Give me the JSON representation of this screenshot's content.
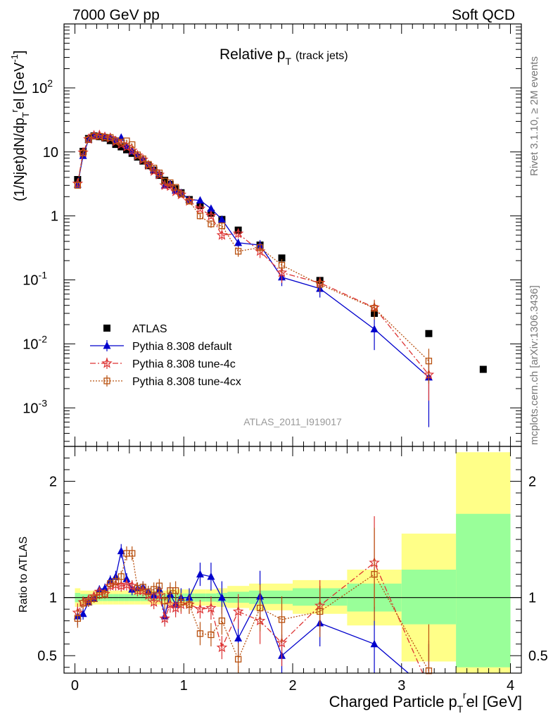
{
  "header": {
    "energy": "7000 GeV pp",
    "category": "Soft QCD",
    "side_top": "Rivet 3.1.10, ≥ 2M events",
    "side_bottom": "mcplots.cern.ch [arXiv:1306.3436]",
    "analysis_id": "ATLAS_2011_I919017"
  },
  "chart_data": {
    "type": "scatter",
    "title_main": "Relative p",
    "title_sub": "T",
    "title_suffix": "(track jets)",
    "xlabel": "Charged Particle p",
    "xlabel_sub": "T",
    "xlabel_sup": "r",
    "xlabel_suffix": "el [GeV]",
    "ylabel": "(1/Njet)dN/dp",
    "ylabel_sub": "T",
    "ylabel_sup": "r",
    "ylabel_suffix": "el [GeV",
    "ylabel_exp": "-1",
    "ylabel_close": "]",
    "ratio_ylabel": "Ratio to ATLAS",
    "xlim": [
      -0.1,
      4.1
    ],
    "ylim_main": [
      0.00025,
      1000
    ],
    "ylim_ratio": [
      0.35,
      2.3
    ],
    "log_y_main": true,
    "main_y_ticks": [
      {
        "v": 0.001,
        "base": "10",
        "exp": "-3"
      },
      {
        "v": 0.01,
        "base": "10",
        "exp": "-2"
      },
      {
        "v": 0.1,
        "base": "10",
        "exp": "-1"
      },
      {
        "v": 1,
        "base": "1",
        "exp": ""
      },
      {
        "v": 10,
        "base": "10",
        "exp": ""
      },
      {
        "v": 100,
        "base": "10",
        "exp": "2"
      }
    ],
    "x_ticks": [
      {
        "v": 0,
        "label": "0"
      },
      {
        "v": 1,
        "label": "1"
      },
      {
        "v": 2,
        "label": "2"
      },
      {
        "v": 3,
        "label": "3"
      },
      {
        "v": 4,
        "label": "4"
      }
    ],
    "ratio_y_ticks": [
      {
        "v": 0.5,
        "label": "0.5"
      },
      {
        "v": 1,
        "label": "1"
      },
      {
        "v": 2,
        "label": "2"
      }
    ],
    "legend_position": "lower-left",
    "series": [
      {
        "name": "ATLAS",
        "color": "#000000",
        "marker": "filled-square",
        "x": [
          0.025,
          0.075,
          0.125,
          0.175,
          0.225,
          0.275,
          0.325,
          0.375,
          0.425,
          0.475,
          0.525,
          0.575,
          0.625,
          0.675,
          0.725,
          0.775,
          0.825,
          0.875,
          0.925,
          0.975,
          1.05,
          1.15,
          1.25,
          1.35,
          1.5,
          1.7,
          1.9,
          2.25,
          2.75,
          3.25,
          3.75
        ],
        "y": [
          3.7,
          10.2,
          16.2,
          17.8,
          17.3,
          16.5,
          15.0,
          13.1,
          12.0,
          10.8,
          9.5,
          8.3,
          7.2,
          6.1,
          5.2,
          4.3,
          3.6,
          3.1,
          2.65,
          2.3,
          1.8,
          1.45,
          1.1,
          0.88,
          0.6,
          0.35,
          0.22,
          0.098,
          0.03,
          0.0145,
          0.004
        ]
      },
      {
        "name": "Pythia 8.308 default",
        "color": "#0000cc",
        "marker": "filled-triangle",
        "line": "solid",
        "x": [
          0.025,
          0.075,
          0.125,
          0.175,
          0.225,
          0.275,
          0.325,
          0.375,
          0.425,
          0.475,
          0.525,
          0.575,
          0.625,
          0.675,
          0.725,
          0.775,
          0.825,
          0.875,
          0.925,
          0.975,
          1.05,
          1.15,
          1.25,
          1.35,
          1.5,
          1.7,
          1.9,
          2.25,
          2.75,
          3.25
        ],
        "y": [
          3.1,
          8.7,
          15.5,
          17.5,
          18.5,
          17.8,
          17.2,
          15.4,
          16.8,
          12.5,
          10.2,
          9.0,
          7.8,
          6.4,
          5.3,
          4.6,
          3.0,
          3.2,
          2.5,
          2.3,
          1.8,
          1.75,
          1.3,
          0.88,
          0.38,
          0.35,
          0.11,
          0.073,
          0.017,
          0.003
        ],
        "yerr": [
          0.2,
          0.4,
          0.6,
          0.6,
          0.6,
          0.6,
          0.6,
          0.5,
          0.6,
          0.5,
          0.4,
          0.4,
          0.35,
          0.3,
          0.28,
          0.25,
          0.2,
          0.2,
          0.18,
          0.16,
          0.14,
          0.15,
          0.12,
          0.1,
          0.06,
          0.07,
          0.03,
          0.02,
          0.009,
          0.0025
        ],
        "ratio": [
          0.84,
          0.86,
          0.96,
          0.99,
          1.07,
          1.08,
          1.15,
          1.18,
          1.4,
          1.16,
          1.07,
          1.08,
          1.09,
          1.05,
          1.02,
          1.07,
          0.84,
          1.03,
          0.94,
          1.0,
          1.0,
          1.2,
          1.18,
          1.0,
          0.65,
          1.01,
          0.5,
          0.78,
          0.6,
          0.2
        ],
        "ratio_err": [
          0.08,
          0.05,
          0.04,
          0.035,
          0.035,
          0.04,
          0.04,
          0.05,
          0.06,
          0.05,
          0.05,
          0.05,
          0.05,
          0.05,
          0.06,
          0.06,
          0.07,
          0.07,
          0.08,
          0.08,
          0.08,
          0.1,
          0.12,
          0.14,
          0.16,
          0.22,
          0.18,
          0.2,
          0.32,
          0.4
        ]
      },
      {
        "name": "Pythia 8.308 tune-4c",
        "color": "#dd3333",
        "marker": "open-star",
        "line": "dashdot",
        "x": [
          0.025,
          0.075,
          0.125,
          0.175,
          0.225,
          0.275,
          0.325,
          0.375,
          0.425,
          0.475,
          0.525,
          0.575,
          0.625,
          0.675,
          0.725,
          0.775,
          0.825,
          0.875,
          0.925,
          0.975,
          1.05,
          1.15,
          1.25,
          1.35,
          1.5,
          1.7,
          1.9,
          2.25,
          2.75,
          3.25
        ],
        "y": [
          3.2,
          9.8,
          15.8,
          18.0,
          18.2,
          17.0,
          16.5,
          14.5,
          13.2,
          12.0,
          10.5,
          8.8,
          7.6,
          6.2,
          5.0,
          4.4,
          3.0,
          2.9,
          2.4,
          2.15,
          1.7,
          1.3,
          1.0,
          0.5,
          0.53,
          0.28,
          0.13,
          0.09,
          0.037,
          0.0033
        ],
        "yerr": [
          0.2,
          0.4,
          0.6,
          0.6,
          0.6,
          0.6,
          0.6,
          0.5,
          0.5,
          0.5,
          0.4,
          0.4,
          0.35,
          0.3,
          0.28,
          0.25,
          0.2,
          0.2,
          0.18,
          0.16,
          0.14,
          0.12,
          0.1,
          0.08,
          0.08,
          0.06,
          0.04,
          0.02,
          0.012,
          0.002
        ],
        "ratio": [
          0.87,
          0.96,
          0.98,
          1.01,
          1.05,
          1.03,
          1.1,
          1.11,
          1.1,
          1.11,
          1.1,
          1.06,
          1.06,
          1.02,
          0.96,
          1.02,
          0.82,
          0.94,
          0.91,
          0.94,
          0.94,
          0.9,
          0.91,
          0.57,
          0.88,
          0.8,
          0.61,
          0.93,
          1.3,
          0.23
        ],
        "ratio_err": [
          0.08,
          0.05,
          0.04,
          0.035,
          0.035,
          0.04,
          0.04,
          0.05,
          0.05,
          0.05,
          0.05,
          0.05,
          0.05,
          0.05,
          0.06,
          0.06,
          0.07,
          0.07,
          0.08,
          0.08,
          0.08,
          0.08,
          0.1,
          0.1,
          0.15,
          0.2,
          0.2,
          0.22,
          0.4,
          0.4
        ]
      },
      {
        "name": "Pythia 8.308 tune-4cx",
        "color": "#b8500f",
        "marker": "open-square",
        "line": "dotted",
        "x": [
          0.025,
          0.075,
          0.125,
          0.175,
          0.225,
          0.275,
          0.325,
          0.375,
          0.425,
          0.475,
          0.525,
          0.575,
          0.625,
          0.675,
          0.725,
          0.775,
          0.825,
          0.875,
          0.925,
          0.975,
          1.05,
          1.15,
          1.25,
          1.35,
          1.5,
          1.7,
          1.9,
          2.25,
          2.75,
          3.25
        ],
        "y": [
          3.0,
          9.6,
          15.6,
          17.6,
          17.6,
          17.0,
          16.8,
          15.0,
          14.2,
          14.9,
          13.0,
          9.0,
          7.8,
          6.4,
          5.6,
          4.7,
          3.5,
          3.3,
          2.8,
          2.2,
          1.7,
          1.0,
          0.75,
          0.7,
          0.28,
          0.32,
          0.17,
          0.085,
          0.036,
          0.0054
        ],
        "yerr": [
          0.2,
          0.4,
          0.6,
          0.6,
          0.6,
          0.6,
          0.6,
          0.5,
          0.5,
          0.6,
          0.5,
          0.4,
          0.35,
          0.3,
          0.28,
          0.25,
          0.2,
          0.2,
          0.18,
          0.16,
          0.14,
          0.12,
          0.1,
          0.09,
          0.05,
          0.06,
          0.04,
          0.02,
          0.012,
          0.003
        ],
        "ratio": [
          0.82,
          0.95,
          0.96,
          0.99,
          1.02,
          1.03,
          1.12,
          1.14,
          1.18,
          1.38,
          1.38,
          1.08,
          1.09,
          1.05,
          1.07,
          1.1,
          0.97,
          1.06,
          1.06,
          0.96,
          0.94,
          0.69,
          0.68,
          0.8,
          0.47,
          0.91,
          0.81,
          0.88,
          1.2,
          0.37
        ],
        "ratio_err": [
          0.08,
          0.05,
          0.04,
          0.035,
          0.035,
          0.04,
          0.04,
          0.05,
          0.05,
          0.06,
          0.06,
          0.05,
          0.05,
          0.05,
          0.06,
          0.06,
          0.07,
          0.07,
          0.08,
          0.08,
          0.08,
          0.1,
          0.1,
          0.12,
          0.14,
          0.2,
          0.2,
          0.22,
          0.4,
          0.4
        ]
      }
    ],
    "ratio_bands": [
      {
        "x0": 0.0,
        "x1": 0.05,
        "yellow": [
          0.92,
          1.08
        ],
        "green": [
          0.96,
          1.04
        ]
      },
      {
        "x0": 0.05,
        "x1": 0.1,
        "yellow": [
          0.94,
          1.06
        ],
        "green": [
          0.97,
          1.03
        ]
      },
      {
        "x0": 0.1,
        "x1": 0.15,
        "yellow": [
          0.94,
          1.06
        ],
        "green": [
          0.97,
          1.03
        ]
      },
      {
        "x0": 0.15,
        "x1": 0.2,
        "yellow": [
          0.94,
          1.06
        ],
        "green": [
          0.97,
          1.03
        ]
      },
      {
        "x0": 0.2,
        "x1": 0.25,
        "yellow": [
          0.94,
          1.06
        ],
        "green": [
          0.97,
          1.03
        ]
      },
      {
        "x0": 0.25,
        "x1": 0.3,
        "yellow": [
          0.94,
          1.06
        ],
        "green": [
          0.97,
          1.03
        ]
      },
      {
        "x0": 0.3,
        "x1": 0.35,
        "yellow": [
          0.94,
          1.06
        ],
        "green": [
          0.97,
          1.03
        ]
      },
      {
        "x0": 0.35,
        "x1": 0.4,
        "yellow": [
          0.94,
          1.06
        ],
        "green": [
          0.97,
          1.03
        ]
      },
      {
        "x0": 0.4,
        "x1": 0.45,
        "yellow": [
          0.94,
          1.06
        ],
        "green": [
          0.97,
          1.03
        ]
      },
      {
        "x0": 0.45,
        "x1": 0.5,
        "yellow": [
          0.94,
          1.06
        ],
        "green": [
          0.97,
          1.03
        ]
      },
      {
        "x0": 0.5,
        "x1": 0.55,
        "yellow": [
          0.94,
          1.06
        ],
        "green": [
          0.97,
          1.03
        ]
      },
      {
        "x0": 0.55,
        "x1": 0.6,
        "yellow": [
          0.94,
          1.06
        ],
        "green": [
          0.97,
          1.03
        ]
      },
      {
        "x0": 0.6,
        "x1": 0.65,
        "yellow": [
          0.94,
          1.06
        ],
        "green": [
          0.97,
          1.03
        ]
      },
      {
        "x0": 0.65,
        "x1": 0.7,
        "yellow": [
          0.94,
          1.06
        ],
        "green": [
          0.97,
          1.03
        ]
      },
      {
        "x0": 0.7,
        "x1": 0.75,
        "yellow": [
          0.94,
          1.06
        ],
        "green": [
          0.97,
          1.03
        ]
      },
      {
        "x0": 0.75,
        "x1": 0.8,
        "yellow": [
          0.94,
          1.06
        ],
        "green": [
          0.97,
          1.03
        ]
      },
      {
        "x0": 0.8,
        "x1": 0.85,
        "yellow": [
          0.94,
          1.06
        ],
        "green": [
          0.97,
          1.03
        ]
      },
      {
        "x0": 0.85,
        "x1": 0.9,
        "yellow": [
          0.93,
          1.07
        ],
        "green": [
          0.965,
          1.035
        ]
      },
      {
        "x0": 0.9,
        "x1": 0.95,
        "yellow": [
          0.93,
          1.07
        ],
        "green": [
          0.965,
          1.035
        ]
      },
      {
        "x0": 0.95,
        "x1": 1.0,
        "yellow": [
          0.93,
          1.07
        ],
        "green": [
          0.965,
          1.035
        ]
      },
      {
        "x0": 1.0,
        "x1": 1.1,
        "yellow": [
          0.93,
          1.07
        ],
        "green": [
          0.965,
          1.035
        ]
      },
      {
        "x0": 1.1,
        "x1": 1.2,
        "yellow": [
          0.93,
          1.07
        ],
        "green": [
          0.965,
          1.035
        ]
      },
      {
        "x0": 1.2,
        "x1": 1.3,
        "yellow": [
          0.93,
          1.07
        ],
        "green": [
          0.965,
          1.035
        ]
      },
      {
        "x0": 1.3,
        "x1": 1.4,
        "yellow": [
          0.92,
          1.08
        ],
        "green": [
          0.96,
          1.04
        ]
      },
      {
        "x0": 1.4,
        "x1": 1.6,
        "yellow": [
          0.91,
          1.1
        ],
        "green": [
          0.955,
          1.05
        ]
      },
      {
        "x0": 1.6,
        "x1": 2.0,
        "yellow": [
          0.89,
          1.12
        ],
        "green": [
          0.945,
          1.06
        ]
      },
      {
        "x0": 2.0,
        "x1": 2.5,
        "yellow": [
          0.86,
          1.15
        ],
        "green": [
          0.93,
          1.08
        ]
      },
      {
        "x0": 2.5,
        "x1": 3.0,
        "yellow": [
          0.76,
          1.24
        ],
        "green": [
          0.88,
          1.12
        ]
      },
      {
        "x0": 3.0,
        "x1": 3.5,
        "yellow": [
          0.45,
          1.55
        ],
        "green": [
          0.77,
          1.24
        ]
      },
      {
        "x0": 3.5,
        "x1": 4.0,
        "yellow": [
          0.35,
          2.25
        ],
        "green": [
          0.4,
          1.72
        ]
      }
    ]
  }
}
